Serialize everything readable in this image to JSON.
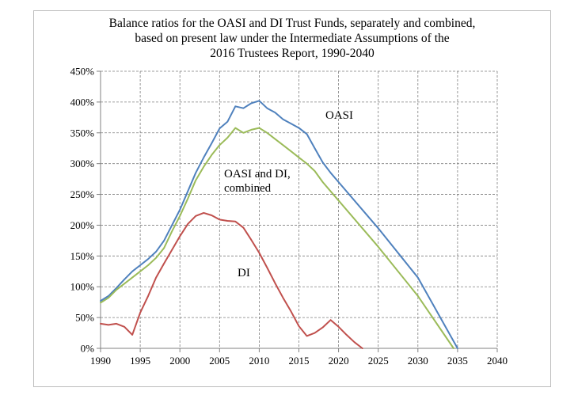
{
  "chart_data": {
    "type": "line",
    "title_lines": [
      "Balance ratios for the OASI and DI Trust Funds, separately and combined,",
      "based on present law under the Intermediate Assumptions of the",
      "2016 Trustees Report, 1990-2040"
    ],
    "xlabel": "",
    "ylabel": "",
    "xlim": [
      1990,
      2040
    ],
    "ylim": [
      0,
      450
    ],
    "x_ticks": [
      1990,
      1995,
      2000,
      2005,
      2010,
      2015,
      2020,
      2025,
      2030,
      2035,
      2040
    ],
    "y_ticks": [
      0,
      50,
      100,
      150,
      200,
      250,
      300,
      350,
      400,
      450
    ],
    "y_tick_labels": [
      "0%",
      "50%",
      "100%",
      "150%",
      "200%",
      "250%",
      "300%",
      "350%",
      "400%",
      "450%"
    ],
    "grid": true,
    "series": [
      {
        "name": "OASI",
        "color": "#4f81bd",
        "x": [
          1990,
          1991,
          1992,
          1993,
          1994,
          1995,
          1996,
          1997,
          1998,
          1999,
          2000,
          2001,
          2002,
          2003,
          2004,
          2005,
          2006,
          2007,
          2008,
          2009,
          2010,
          2011,
          2012,
          2013,
          2014,
          2015,
          2016,
          2017,
          2018,
          2019,
          2020,
          2025,
          2030,
          2035
        ],
        "values": [
          77,
          85,
          98,
          112,
          125,
          135,
          145,
          157,
          175,
          200,
          225,
          255,
          285,
          310,
          333,
          357,
          368,
          393,
          390,
          398,
          402,
          390,
          383,
          372,
          365,
          358,
          348,
          325,
          302,
          285,
          270,
          195,
          115,
          0
        ]
      },
      {
        "name": "OASI and DI, combined",
        "color": "#9bbb59",
        "x": [
          1990,
          1991,
          1992,
          1993,
          1994,
          1995,
          1996,
          1997,
          1998,
          1999,
          2000,
          2001,
          2002,
          2003,
          2004,
          2005,
          2006,
          2007,
          2008,
          2009,
          2010,
          2011,
          2012,
          2013,
          2014,
          2015,
          2016,
          2017,
          2018,
          2019,
          2020,
          2025,
          2030,
          2034.5
        ],
        "values": [
          74,
          82,
          95,
          105,
          115,
          125,
          135,
          147,
          163,
          190,
          215,
          243,
          273,
          295,
          314,
          330,
          342,
          358,
          350,
          355,
          358,
          350,
          340,
          330,
          320,
          310,
          300,
          288,
          270,
          255,
          240,
          165,
          85,
          0
        ]
      },
      {
        "name": "DI",
        "color": "#c0504d",
        "x": [
          1990,
          1991,
          1992,
          1993,
          1994,
          1995,
          1996,
          1997,
          1998,
          1999,
          2000,
          2001,
          2002,
          2003,
          2004,
          2005,
          2006,
          2007,
          2008,
          2009,
          2010,
          2011,
          2012,
          2013,
          2014,
          2015,
          2016,
          2017,
          2018,
          2019,
          2020,
          2021,
          2022,
          2023
        ],
        "values": [
          40,
          38,
          40,
          35,
          22,
          58,
          85,
          115,
          138,
          160,
          182,
          202,
          215,
          220,
          216,
          209,
          207,
          206,
          196,
          176,
          155,
          131,
          106,
          82,
          60,
          36,
          20,
          25,
          34,
          46,
          35,
          22,
          10,
          0
        ]
      }
    ],
    "annotations": [
      {
        "text": "OASI"
      },
      {
        "text": "OASI and DI,"
      },
      {
        "text": "combined"
      },
      {
        "text": "DI"
      }
    ]
  }
}
